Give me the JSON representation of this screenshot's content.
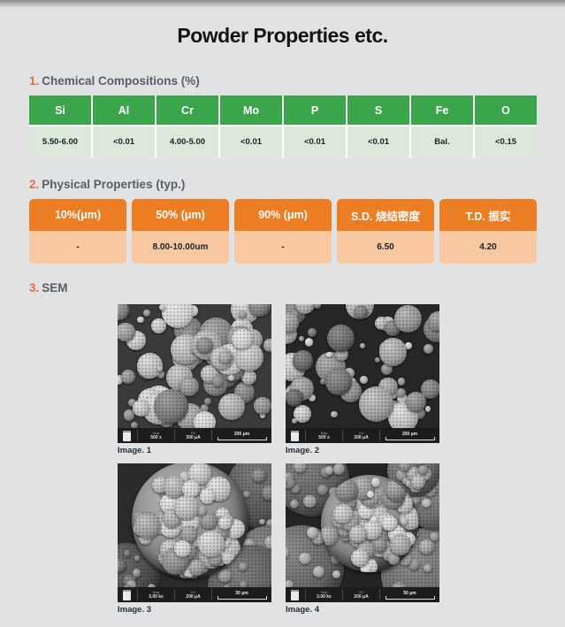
{
  "page": {
    "title": "Powder Properties etc."
  },
  "sections": {
    "chemical": {
      "number": "1.",
      "title": "Chemical Compositions (%)",
      "headers": [
        "Si",
        "Al",
        "Cr",
        "Mo",
        "P",
        "S",
        "Fe",
        "O"
      ],
      "values": [
        "5.50-6.00",
        "<0.01",
        "4.00-5.00",
        "<0.01",
        "<0.01",
        "<0.01",
        "Bal.",
        "<0.15"
      ]
    },
    "physical": {
      "number": "2.",
      "title": "Physical Properties (typ.)",
      "headers": [
        "10%(μm)",
        "50% (μm)",
        "90% (μm)",
        "S.D. 烧结密度",
        "T.D. 振实"
      ],
      "values": [
        "-",
        "8.00-10.00um",
        "-",
        "6.50",
        "4.20"
      ]
    },
    "sem": {
      "number": "3.",
      "title": "SEM",
      "images": [
        {
          "caption": "Image. 1",
          "mag_label": "Mag",
          "mag": "500 x",
          "hv_label": "HV",
          "hv": "300 μA",
          "scale": "200 μm"
        },
        {
          "caption": "Image. 2",
          "mag_label": "Mag",
          "mag": "500 x",
          "hv_label": "HV",
          "hv": "300 μA",
          "scale": "200 μm"
        },
        {
          "caption": "Image. 3",
          "mag_label": "Mag",
          "mag": "3.00 kx",
          "hv_label": "HV",
          "hv": "200 μA",
          "scale": "30 μm"
        },
        {
          "caption": "Image. 4",
          "mag_label": "Mag",
          "mag": "3.00 kx",
          "hv_label": "HV",
          "hv": "200 μA",
          "scale": "50 μm"
        }
      ]
    }
  },
  "colors": {
    "green_header": "#3aa54a",
    "green_row": "#dce9da",
    "orange_header": "#ed7d23",
    "orange_row": "#f8c9a0",
    "section_number_accent": "#e06f46",
    "section_title_text": "#565e68",
    "page_background": "#e1e2e4"
  }
}
